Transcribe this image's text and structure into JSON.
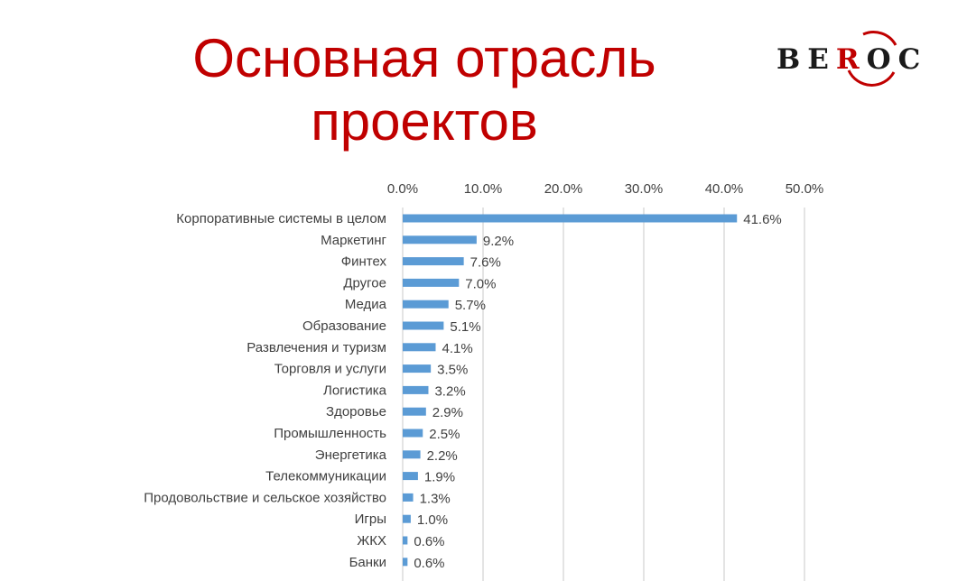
{
  "title": "Основная отрасль проектов",
  "logo": {
    "text_left": "BE",
    "text_red": "R",
    "text_right": "OC"
  },
  "colors": {
    "title": "#c00000",
    "bar": "#5b9bd5",
    "logo_red": "#c00000"
  },
  "chart_data": {
    "type": "bar",
    "orientation": "horizontal",
    "title": "",
    "xlabel": "",
    "ylabel": "",
    "xlim": [
      0,
      50
    ],
    "x_ticks": [
      "0.0%",
      "10.0%",
      "20.0%",
      "30.0%",
      "40.0%",
      "50.0%"
    ],
    "grid": true,
    "axis_position": "top",
    "categories": [
      "Корпоративные системы в целом",
      "Маркетинг",
      "Финтех",
      "Другое",
      "Медиа",
      "Образование",
      "Развлечения и туризм",
      "Торговля и услуги",
      "Логистика",
      "Здоровье",
      "Промышленность",
      "Энергетика",
      "Телекоммуникации",
      "Продовольствие и сельское хозяйство",
      "Игры",
      "ЖКХ",
      "Банки"
    ],
    "values": [
      41.6,
      9.2,
      7.6,
      7.0,
      5.7,
      5.1,
      4.1,
      3.5,
      3.2,
      2.9,
      2.5,
      2.2,
      1.9,
      1.3,
      1.0,
      0.6,
      0.6
    ],
    "data_labels": [
      "41.6%",
      "9.2%",
      "7.6%",
      "7.0%",
      "5.7%",
      "5.1%",
      "4.1%",
      "3.5%",
      "3.2%",
      "2.9%",
      "2.5%",
      "2.2%",
      "1.9%",
      "1.3%",
      "1.0%",
      "0.6%",
      "0.6%"
    ]
  }
}
